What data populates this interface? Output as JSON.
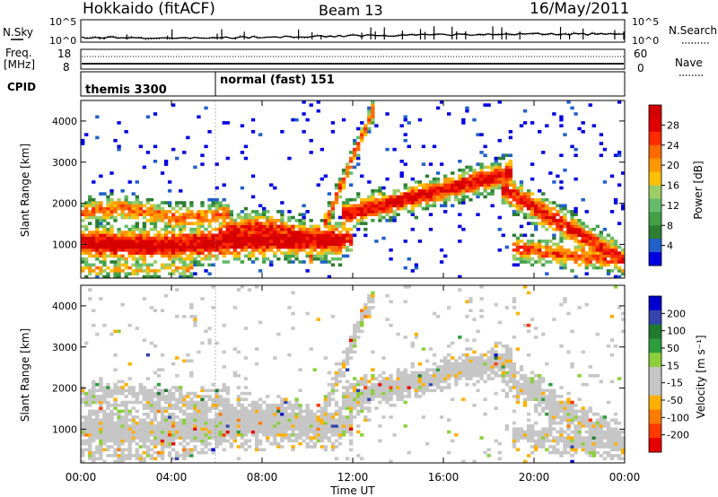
{
  "header": {
    "station": "Hokkaido (fitACF)",
    "beam": "Beam 13",
    "date": "16/May/2011"
  },
  "sky_panel": {
    "left_label": "N.Sky",
    "right_label": "N.Search",
    "left_ticks": [
      "10^5",
      "10^0"
    ],
    "right_ticks": [
      "10^5",
      "10^0"
    ]
  },
  "freq_panel": {
    "label_line1": "Freq.",
    "label_line2": "[MHz]",
    "left_ticks": [
      "18",
      "8"
    ],
    "right_ticks": [
      "60",
      "0"
    ],
    "right_label": "Nave"
  },
  "cpid_panel": {
    "label": "CPID",
    "modes": [
      {
        "text": "themis 3300",
        "start": "00:00"
      },
      {
        "text": "normal (fast) 151",
        "start": "06:00"
      }
    ]
  },
  "colors": {
    "power": [
      "#0000e0",
      "#2060c8",
      "#2e7d32",
      "#43a047",
      "#66bb6a",
      "#9ccc65",
      "#ffc107",
      "#ff9800",
      "#ff6a00",
      "#ff2a00",
      "#e00000",
      "#d40000"
    ],
    "velocity": [
      "#0000cc",
      "#3344aa",
      "#1f7a2e",
      "#2e9d3c",
      "#8ccf3a",
      "#c6c6c6",
      "#c6c6c6",
      "#ffb000",
      "#ff7a00",
      "#ff3a00",
      "#e60000"
    ]
  },
  "chart_data": [
    {
      "type": "heatmap",
      "title": "Power",
      "xlabel": "Time UT",
      "ylabel": "Slant Range [km]",
      "x_ticks": [
        "00:00",
        "04:00",
        "08:00",
        "12:00",
        "16:00",
        "20:00",
        "00:00"
      ],
      "y_ticks": [
        "1000",
        "2000",
        "3000",
        "4000"
      ],
      "ylim": [
        180,
        4500
      ],
      "colorbar_label": "Power [dB]",
      "colorbar_ticks": [
        "4",
        "8",
        "12",
        "16",
        "20",
        "24",
        "28"
      ],
      "colorbar_range": [
        0,
        32
      ]
    },
    {
      "type": "heatmap",
      "title": "Velocity",
      "xlabel": "Time UT",
      "ylabel": "Slant Range [km]",
      "x_ticks": [
        "00:00",
        "04:00",
        "08:00",
        "12:00",
        "16:00",
        "20:00",
        "00:00"
      ],
      "y_ticks": [
        "1000",
        "2000",
        "3000",
        "4000"
      ],
      "ylim": [
        180,
        4500
      ],
      "colorbar_label": "Velocity [m s⁻¹]",
      "colorbar_ticks": [
        "200",
        "100",
        "50",
        "15",
        "-15",
        "-50",
        "-100",
        "-200"
      ],
      "colorbar_range": [
        -250,
        250
      ]
    }
  ],
  "axis": {
    "xlabel": "Time UT"
  }
}
